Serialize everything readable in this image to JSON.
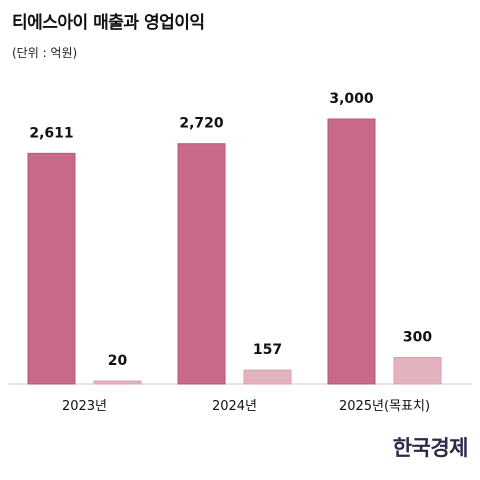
{
  "chart_data": {
    "type": "bar",
    "title": "티에스아이 매출과 영업이익",
    "subtitle": "(단위 : 억원)",
    "categories": [
      "2023년",
      "2024년",
      "2025년(목표치)"
    ],
    "series": [
      {
        "values": [
          2611,
          2720,
          3000
        ],
        "color": "#c9698a"
      },
      {
        "values": [
          20,
          157,
          300
        ],
        "color": "#e2b3bf"
      }
    ],
    "value_labels": [
      [
        "2,611",
        "2,720",
        "3,000"
      ],
      [
        "20",
        "157",
        "300"
      ]
    ],
    "ylim": [
      0,
      3000
    ],
    "grid": false,
    "legend": "none"
  },
  "brand": "한국경제"
}
